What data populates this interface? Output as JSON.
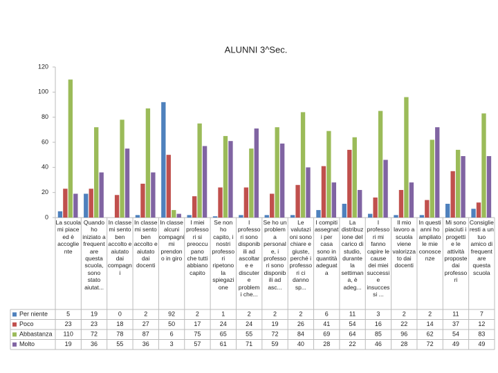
{
  "chart_data": {
    "type": "bar",
    "title": "ALUNNI 3^Sec.",
    "categories": [
      "La scuola\nmi piace\ned è\naccoglie\nnte",
      "Quando\nho\niniziato a\nfrequent\nare\nquesta\nscuola,\nsono\nstato\naiutat...",
      "In classe\nmi sento\nben\naccolto e\naiutato\ndai\ncompagn\ni",
      "In classe\nmi sento\nben\naccolto e\naiutato\ndai\ndocenti",
      "In classe\nalcuni\ncompagni\nmi\nprendon\no in giro",
      "I miei\nprofesso\nri si\npreoccu\npano\nche tutti\nabbiano\ncapito",
      "Se non\nho\ncapito, i\nnostri\nprofesso\nri\nripetono\nla\nspiegazi\none",
      "I\nprofesso\nri sono\ndisponib\nili ad\nascoltar\ne e\ndiscuter\ne\nproblem\ni che...",
      "Se ho un\nproblem\na\npersonal\ne, i\nprofesso\nri sono\ndisponib\nili ad\nasc...",
      "Le\nvalutazi\noni sono\nchiare e\ngiuste,\nperché i\nprofesso\nri ci\ndanno\nsp...",
      "I compiti\nassegnat\ni per\ncasa\nsono in\nquantità\nadeguat\na",
      "La\ndistribuz\nione del\ncarico di\nstudio,\ndurante\nla\nsettiman\na, è\nadeg...",
      "I\nprofesso\nri mi\nfanno\ncapire le\ncause\ndei miei\nsuccessi\ne\ninsucces\nsi ...",
      "Il mio\nlavoro a\nscuola\nviene\nvalorizza\nto dai\ndocenti",
      "In questi\nanni ho\nampliato\nle mie\nconosce\nnze",
      "Mi sono\npiaciuti i\nprogetti\ne le\nattività\nproposte\ndai\nprofesso\nri",
      "Consiglie\nresti a un\ntuo\namico di\nfrequent\nare\nquesta\nscuola"
    ],
    "series": [
      {
        "name": "Per niente",
        "color": "#4f81bd",
        "values": [
          5,
          19,
          0,
          2,
          92,
          2,
          1,
          2,
          2,
          2,
          6,
          11,
          3,
          2,
          2,
          11,
          7
        ]
      },
      {
        "name": "Poco",
        "color": "#c0504d",
        "values": [
          23,
          23,
          18,
          27,
          50,
          17,
          24,
          24,
          19,
          26,
          41,
          54,
          16,
          22,
          14,
          37,
          12
        ]
      },
      {
        "name": "Abbastanza",
        "color": "#9bbb59",
        "values": [
          110,
          72,
          78,
          87,
          6,
          75,
          65,
          55,
          72,
          84,
          69,
          64,
          85,
          96,
          62,
          54,
          83
        ]
      },
      {
        "name": "Molto",
        "color": "#8064a2",
        "values": [
          19,
          36,
          55,
          36,
          3,
          57,
          61,
          71,
          59,
          40,
          28,
          22,
          46,
          28,
          72,
          49,
          49
        ]
      }
    ],
    "ylim": [
      0,
      120
    ],
    "yticks": [
      0,
      20,
      40,
      60,
      80,
      100,
      120
    ]
  }
}
